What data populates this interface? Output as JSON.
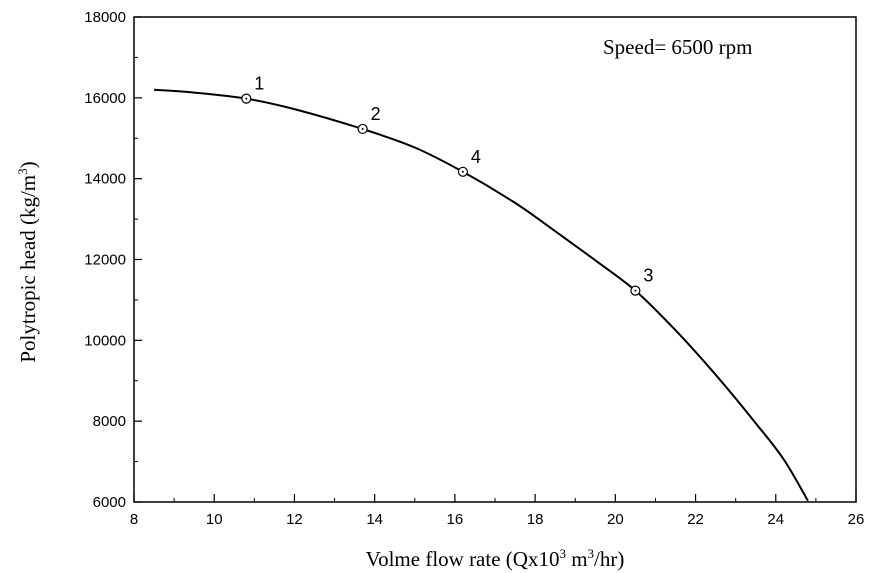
{
  "chart_data": {
    "type": "line",
    "xlabel": "Volme flow rate (Qx10",
    "xlabel_sup1": "3",
    "xlabel_mid": " m",
    "xlabel_sup2": "3",
    "xlabel_end": "/hr)",
    "ylabel": "Polytropic head (kg/m",
    "ylabel_sup": "3",
    "ylabel_end": ")",
    "annotation": "Speed= 6500 rpm",
    "xlim": [
      8,
      26
    ],
    "ylim": [
      6000,
      18000
    ],
    "x_ticks": [
      8,
      10,
      12,
      14,
      16,
      18,
      20,
      22,
      24,
      26
    ],
    "y_ticks": [
      6000,
      8000,
      10000,
      12000,
      14000,
      16000,
      18000
    ],
    "grid": false,
    "series": [
      {
        "x": [
          8.5,
          9.5,
          10.8,
          12.0,
          13.7,
          15.0,
          16.2,
          17.5,
          18.5,
          19.5,
          20.5,
          21.5,
          22.5,
          23.5,
          24.2,
          24.8
        ],
        "values": [
          16200,
          16130,
          15980,
          15720,
          15230,
          14770,
          14170,
          13400,
          12700,
          11980,
          11230,
          10250,
          9150,
          7950,
          7050,
          6030
        ]
      }
    ],
    "points": [
      {
        "label": "1",
        "x": 10.8,
        "y": 15980
      },
      {
        "label": "2",
        "x": 13.7,
        "y": 15230
      },
      {
        "label": "4",
        "x": 16.2,
        "y": 14170
      },
      {
        "label": "3",
        "x": 20.5,
        "y": 11230
      }
    ]
  }
}
